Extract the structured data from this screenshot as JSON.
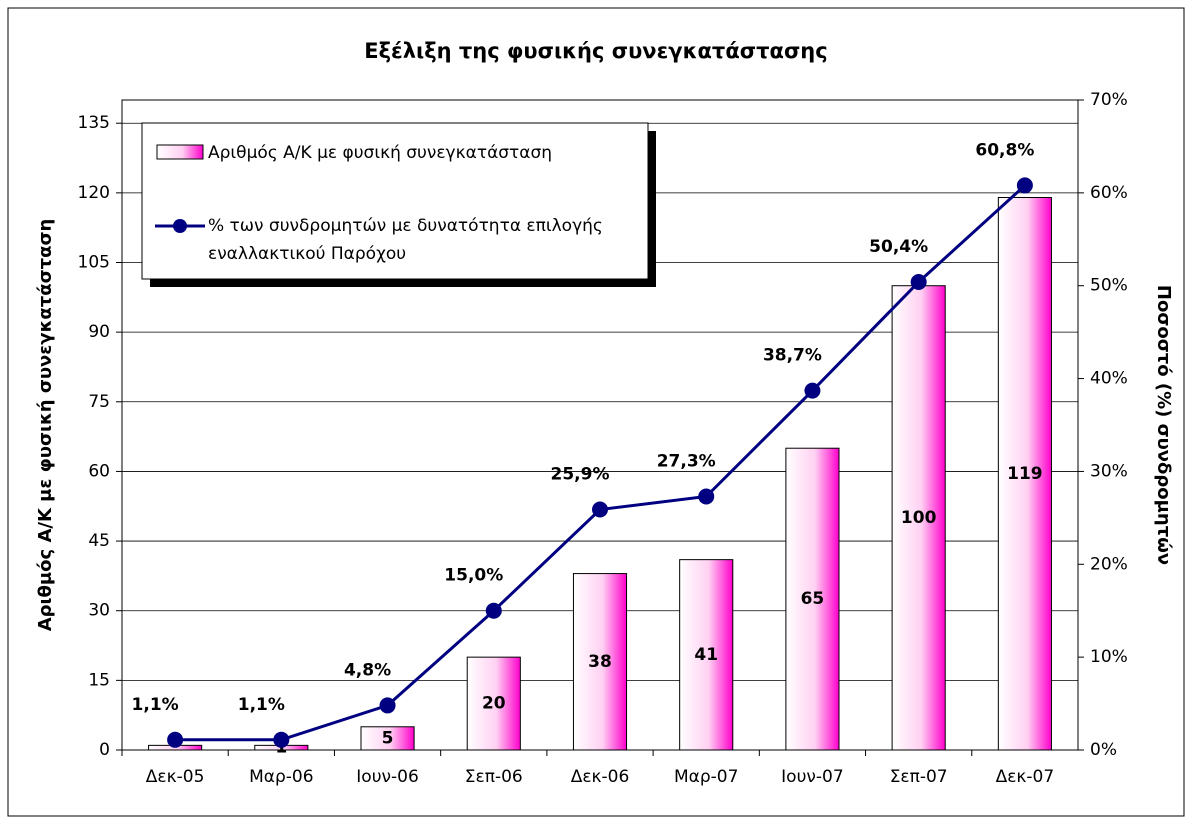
{
  "chart_data": {
    "type": "bar",
    "title": "Εξέλιξη της φυσικής συνεγκατάστασης",
    "ylabel": "Αριθμός Α/Κ με φυσική συνεγκατάσταση",
    "y2label": "Ποσοστό (%) συνδρομητών",
    "categories": [
      "Δεκ-05",
      "Μαρ-06",
      "Ιουν-06",
      "Σεπ-06",
      "Δεκ-06",
      "Μαρ-07",
      "Ιουν-07",
      "Σεπ-07",
      "Δεκ-07"
    ],
    "series": [
      {
        "name": "Αριθμός Α/Κ με φυσική συνεγκατάσταση",
        "type": "bar",
        "color": "#ff00cc",
        "values": [
          1,
          1,
          5,
          20,
          38,
          41,
          65,
          100,
          119
        ],
        "value_labels": [
          null,
          "1",
          "5",
          "20",
          "38",
          "41",
          "65",
          "100",
          "119"
        ]
      },
      {
        "name": "% των συνδρομητών με δυνατότητα επιλογής εναλλακτικού Παρόχου",
        "type": "line",
        "axis": "y2",
        "color": "#000080",
        "values": [
          1.1,
          1.1,
          4.8,
          15.0,
          25.9,
          27.3,
          38.7,
          50.4,
          60.8
        ],
        "value_labels": [
          "1,1%",
          "1,1%",
          "4,8%",
          "15,0%",
          "25,9%",
          "27,3%",
          "38,7%",
          "50,4%",
          "60,8%"
        ]
      }
    ],
    "ylim": [
      0,
      140
    ],
    "yticks": [
      0,
      15,
      30,
      45,
      60,
      75,
      90,
      105,
      120,
      135
    ],
    "y2lim": [
      0,
      70
    ],
    "y2ticks": [
      {
        "value": 0,
        "label": "0%"
      },
      {
        "value": 10,
        "label": "10%"
      },
      {
        "value": 20,
        "label": "20%"
      },
      {
        "value": 30,
        "label": "30%"
      },
      {
        "value": 40,
        "label": "40%"
      },
      {
        "value": 50,
        "label": "50%"
      },
      {
        "value": 60,
        "label": "60%"
      },
      {
        "value": 70,
        "label": "70%"
      }
    ],
    "grid": true,
    "legend": "upper left"
  }
}
